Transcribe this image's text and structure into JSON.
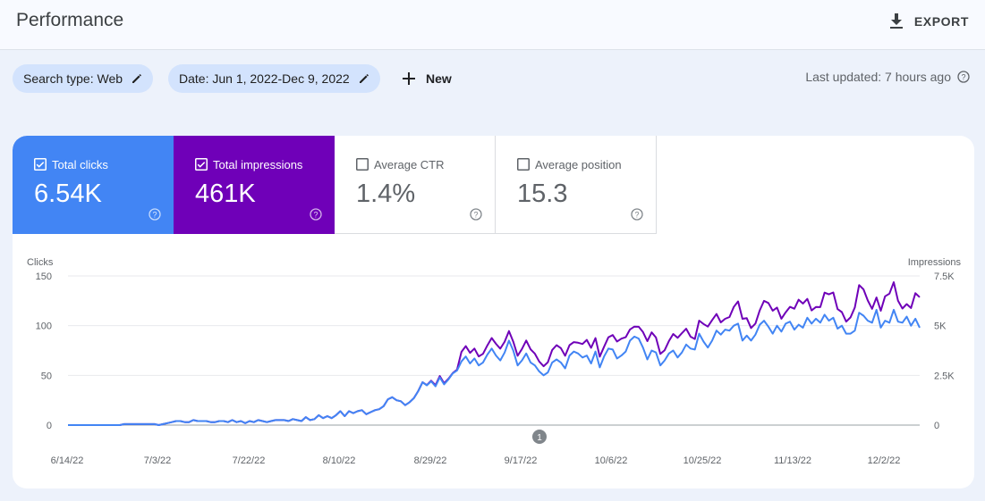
{
  "header": {
    "title": "Performance",
    "export_label": "EXPORT"
  },
  "filters": {
    "search_type": "Search type: Web",
    "date": "Date: Jun 1, 2022-Dec 9, 2022",
    "new_label": "New",
    "last_updated": "Last updated: 7 hours ago"
  },
  "metrics": [
    {
      "label": "Total clicks",
      "value": "6.54K",
      "checked": true
    },
    {
      "label": "Total impressions",
      "value": "461K",
      "checked": true
    },
    {
      "label": "Average CTR",
      "value": "1.4%",
      "checked": false
    },
    {
      "label": "Average position",
      "value": "15.3",
      "checked": false
    }
  ],
  "colors": {
    "clicks": "#4285f4",
    "impressions": "#6f00b8",
    "chip_bg": "#d3e3fd"
  },
  "chart_data": {
    "type": "line",
    "left_axis_label": "Clicks",
    "right_axis_label": "Impressions",
    "left_ticks": [
      "150",
      "100",
      "50",
      "0"
    ],
    "right_ticks": [
      "7.5K",
      "5K",
      "2.5K",
      "0"
    ],
    "ylim_left": [
      0,
      150
    ],
    "ylim_right": [
      0,
      7500
    ],
    "x_tick_labels": [
      "6/14/22",
      "7/3/22",
      "7/22/22",
      "8/10/22",
      "8/29/22",
      "9/17/22",
      "10/6/22",
      "10/25/22",
      "11/13/22",
      "12/2/22"
    ],
    "annotation": {
      "label": "1",
      "date": "9/21/22"
    },
    "grid": true,
    "series": [
      {
        "name": "Clicks",
        "color": "#4285f4",
        "axis": "left",
        "values": [
          0,
          0,
          0,
          0,
          0,
          0,
          0,
          0,
          0,
          0,
          0,
          0,
          0,
          1,
          1,
          1,
          1,
          1,
          1,
          1,
          1,
          0,
          1,
          2,
          3,
          4,
          4,
          3,
          3,
          5,
          4,
          4,
          4,
          3,
          3,
          4,
          4,
          3,
          5,
          3,
          4,
          2,
          4,
          3,
          5,
          4,
          3,
          4,
          5,
          5,
          5,
          4,
          6,
          5,
          4,
          8,
          5,
          6,
          10,
          7,
          9,
          7,
          10,
          14,
          9,
          14,
          12,
          14,
          15,
          11,
          13,
          15,
          16,
          19,
          26,
          28,
          25,
          24,
          20,
          23,
          27,
          34,
          43,
          40,
          44,
          39,
          48,
          41,
          46,
          52,
          55,
          64,
          69,
          62,
          67,
          60,
          63,
          71,
          77,
          70,
          65,
          73,
          85,
          75,
          60,
          65,
          72,
          63,
          60,
          54,
          50,
          53,
          63,
          66,
          63,
          57,
          70,
          74,
          72,
          68,
          70,
          62,
          74,
          58,
          69,
          77,
          76,
          67,
          70,
          74,
          85,
          89,
          87,
          78,
          66,
          75,
          73,
          60,
          65,
          72,
          75,
          68,
          73,
          81,
          77,
          76,
          92,
          84,
          78,
          85,
          95,
          91,
          96,
          95,
          100,
          102,
          85,
          90,
          85,
          91,
          101,
          105,
          99,
          92,
          100,
          94,
          102,
          104,
          96,
          101,
          98,
          108,
          102,
          107,
          103,
          111,
          105,
          108,
          97,
          100,
          92,
          92,
          95,
          113,
          110,
          105,
          103,
          116,
          98,
          105,
          103,
          116,
          104,
          103,
          109,
          100,
          107,
          98
        ],
        "note": "index order; full series rendered below"
      },
      {
        "name": "Impressions",
        "color": "#6f00b8",
        "axis": "right"
      }
    ]
  }
}
